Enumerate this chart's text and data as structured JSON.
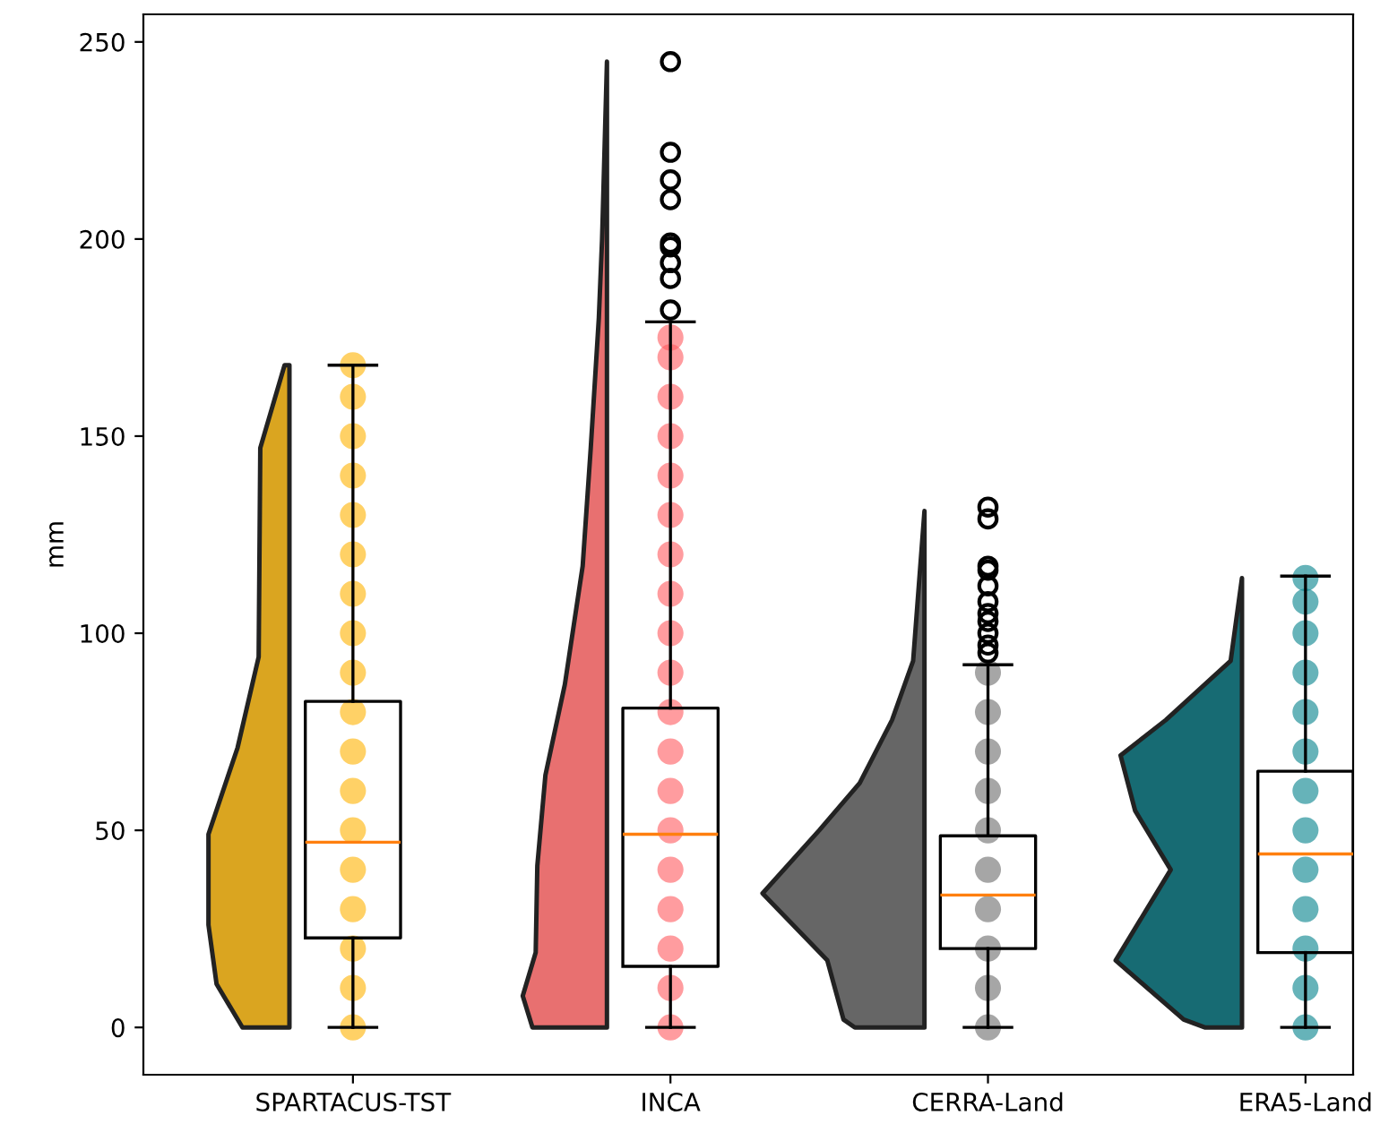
{
  "chart_data": {
    "type": "box",
    "ylabel": "mm",
    "categories": [
      "SPARTACUS-TST",
      "INCA",
      "CERRA-Land",
      "ERA5-Land"
    ],
    "ylim": [
      -12,
      257
    ],
    "yticks": [
      0,
      50,
      100,
      150,
      200,
      250
    ],
    "grid": false,
    "marker": "circle",
    "boxes": [
      {
        "low": 0,
        "q1": 22.7,
        "median": 47,
        "q3": 82.7,
        "high": 168
      },
      {
        "low": 0,
        "q1": 15.5,
        "median": 49,
        "q3": 81,
        "high": 179,
        "outliers": [
          182,
          190,
          194,
          198,
          199,
          210,
          215,
          222,
          245
        ]
      },
      {
        "low": 0,
        "q1": 20,
        "median": 33.6,
        "q3": 48.6,
        "high": 92,
        "outliers": [
          95,
          97,
          100,
          103,
          105,
          108,
          112,
          116,
          117,
          129,
          132
        ]
      },
      {
        "low": 0,
        "q1": 19,
        "median": 44,
        "q3": 65,
        "high": 114.5
      }
    ],
    "series": [
      {
        "type": "scatter",
        "color": "#ffb300",
        "x": [
          "SPARTACUS-TST",
          "SPARTACUS-TST",
          "SPARTACUS-TST",
          "SPARTACUS-TST",
          "SPARTACUS-TST",
          "SPARTACUS-TST",
          "SPARTACUS-TST",
          "SPARTACUS-TST",
          "SPARTACUS-TST",
          "SPARTACUS-TST",
          "SPARTACUS-TST",
          "SPARTACUS-TST",
          "SPARTACUS-TST",
          "SPARTACUS-TST",
          "SPARTACUS-TST",
          "SPARTACUS-TST",
          "SPARTACUS-TST",
          "SPARTACUS-TST"
        ],
        "values": [
          0,
          10,
          20,
          30,
          40,
          50,
          60,
          70,
          80,
          90,
          100,
          110,
          120,
          130,
          140,
          150,
          160,
          168
        ]
      },
      {
        "type": "scatter",
        "color": "#ff5a5f",
        "x": [
          "INCA",
          "INCA",
          "INCA",
          "INCA",
          "INCA",
          "INCA",
          "INCA",
          "INCA",
          "INCA",
          "INCA",
          "INCA",
          "INCA",
          "INCA",
          "INCA",
          "INCA",
          "INCA",
          "INCA",
          "INCA",
          "INCA"
        ],
        "values": [
          0,
          10,
          20,
          30,
          40,
          50,
          60,
          70,
          80,
          90,
          100,
          110,
          120,
          130,
          140,
          150,
          160,
          170,
          175
        ]
      },
      {
        "type": "scatter",
        "color": "#6b6b6b",
        "x": [
          "CERRA-Land",
          "CERRA-Land",
          "CERRA-Land",
          "CERRA-Land",
          "CERRA-Land",
          "CERRA-Land",
          "CERRA-Land",
          "CERRA-Land",
          "CERRA-Land",
          "CERRA-Land"
        ],
        "values": [
          0,
          10,
          20,
          30,
          40,
          50,
          60,
          70,
          80,
          90
        ]
      },
      {
        "type": "scatter",
        "color": "#00808a",
        "x": [
          "ERA5-Land",
          "ERA5-Land",
          "ERA5-Land",
          "ERA5-Land",
          "ERA5-Land",
          "ERA5-Land",
          "ERA5-Land",
          "ERA5-Land",
          "ERA5-Land",
          "ERA5-Land",
          "ERA5-Land",
          "ERA5-Land",
          "ERA5-Land"
        ],
        "values": [
          0,
          10,
          20,
          30,
          40,
          50,
          60,
          70,
          80,
          90,
          100,
          108,
          114
        ]
      }
    ]
  }
}
